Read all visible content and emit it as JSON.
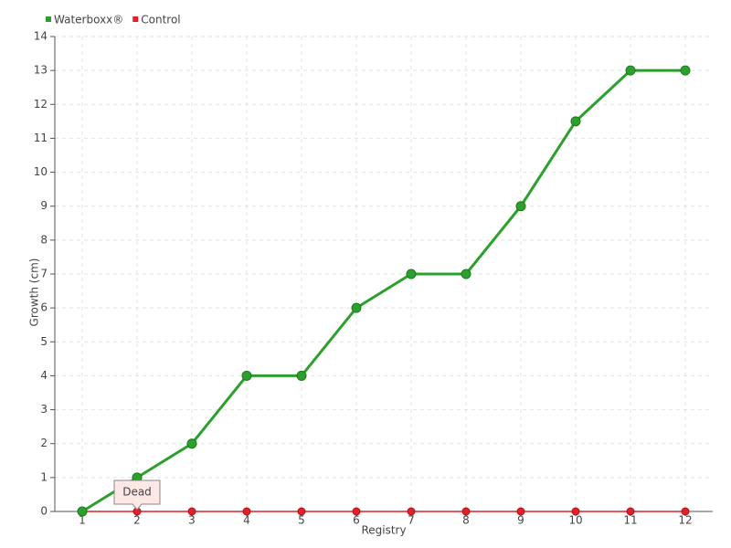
{
  "chart_data": {
    "type": "line",
    "x": [
      1,
      2,
      3,
      4,
      5,
      6,
      7,
      8,
      9,
      10,
      11,
      12
    ],
    "series": [
      {
        "name": "Waterboxx®",
        "color": "#2ca02c",
        "values": [
          0,
          1,
          2,
          4,
          4,
          6,
          7,
          7,
          9,
          11.5,
          13,
          13
        ]
      },
      {
        "name": "Control",
        "color": "#e0202a",
        "values": [
          0,
          0,
          0,
          0,
          0,
          0,
          0,
          0,
          0,
          0,
          0,
          0
        ]
      }
    ],
    "xlabel": "Registry",
    "ylabel": "Growth (cm)",
    "xlim": [
      0.5,
      12.5
    ],
    "xticks": [
      1,
      2,
      3,
      4,
      5,
      6,
      7,
      8,
      9,
      10,
      11,
      12
    ],
    "ylim": [
      0,
      14
    ],
    "yticks": [
      0,
      1,
      2,
      3,
      4,
      5,
      6,
      7,
      8,
      9,
      10,
      11,
      12,
      13,
      14
    ],
    "grid": true,
    "legend": "top-left",
    "annotations": [
      {
        "text": "Dead",
        "x": 2,
        "y": 0
      }
    ]
  }
}
